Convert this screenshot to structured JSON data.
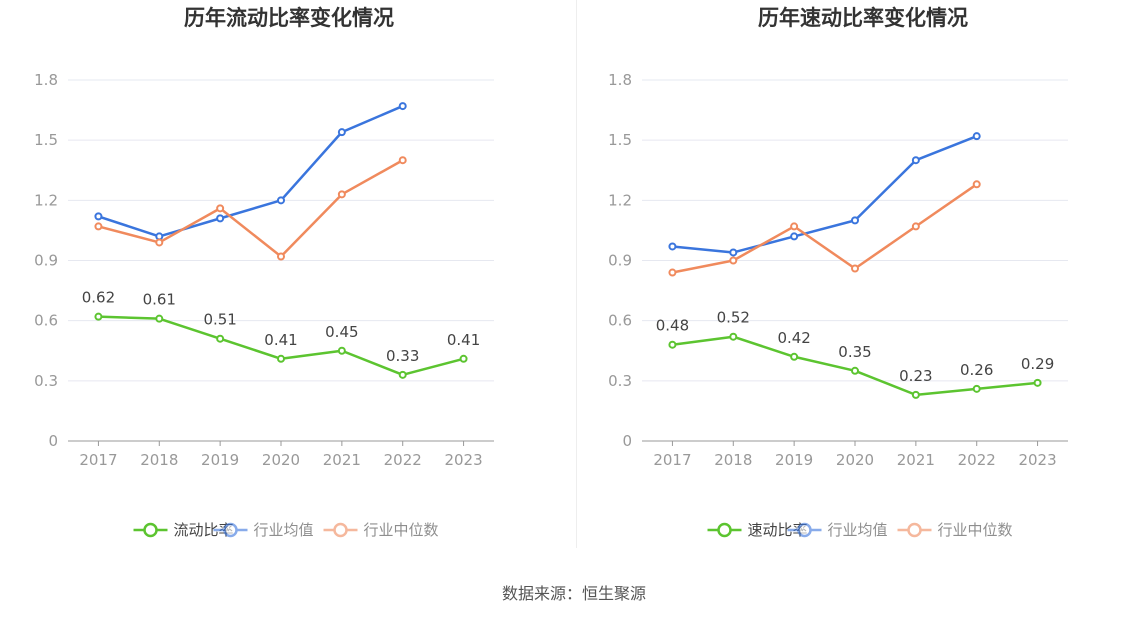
{
  "chart_data": [
    {
      "type": "line",
      "title": "历年流动比率变化情况",
      "categories": [
        "2017",
        "2018",
        "2019",
        "2020",
        "2021",
        "2022",
        "2023"
      ],
      "ylim": [
        0,
        1.8
      ],
      "yticks": [
        "0",
        "0.3",
        "0.6",
        "0.9",
        "1.2",
        "1.5",
        "1.8"
      ],
      "grid": true,
      "legend_position": "bottom",
      "series": [
        {
          "name": "流动比率",
          "color": "#5cc430",
          "values": [
            0.62,
            0.61,
            0.51,
            0.41,
            0.45,
            0.33,
            0.41
          ],
          "labels": [
            "0.62",
            "0.61",
            "0.51",
            "0.41",
            "0.45",
            "0.33",
            "0.41"
          ]
        },
        {
          "name": "行业均值",
          "color": "#3a75dd",
          "values": [
            1.12,
            1.02,
            1.11,
            1.2,
            1.54,
            1.67,
            null
          ]
        },
        {
          "name": "行业中位数",
          "color": "#f08a5d",
          "values": [
            1.07,
            0.99,
            1.16,
            0.92,
            1.23,
            1.4,
            null
          ]
        }
      ]
    },
    {
      "type": "line",
      "title": "历年速动比率变化情况",
      "categories": [
        "2017",
        "2018",
        "2019",
        "2020",
        "2021",
        "2022",
        "2023"
      ],
      "ylim": [
        0,
        1.8
      ],
      "yticks": [
        "0",
        "0.3",
        "0.6",
        "0.9",
        "1.2",
        "1.5",
        "1.8"
      ],
      "grid": true,
      "legend_position": "bottom",
      "series": [
        {
          "name": "速动比率",
          "color": "#5cc430",
          "values": [
            0.48,
            0.52,
            0.42,
            0.35,
            0.23,
            0.26,
            0.29
          ],
          "labels": [
            "0.48",
            "0.52",
            "0.42",
            "0.35",
            "0.23",
            "0.26",
            "0.29"
          ]
        },
        {
          "name": "行业均值",
          "color": "#3a75dd",
          "values": [
            0.97,
            0.94,
            1.02,
            1.1,
            1.4,
            1.52,
            null
          ]
        },
        {
          "name": "行业中位数",
          "color": "#f08a5d",
          "values": [
            0.84,
            0.9,
            1.07,
            0.86,
            1.07,
            1.28,
            null
          ]
        }
      ]
    }
  ],
  "footer": {
    "source": "数据来源：恒生聚源"
  }
}
